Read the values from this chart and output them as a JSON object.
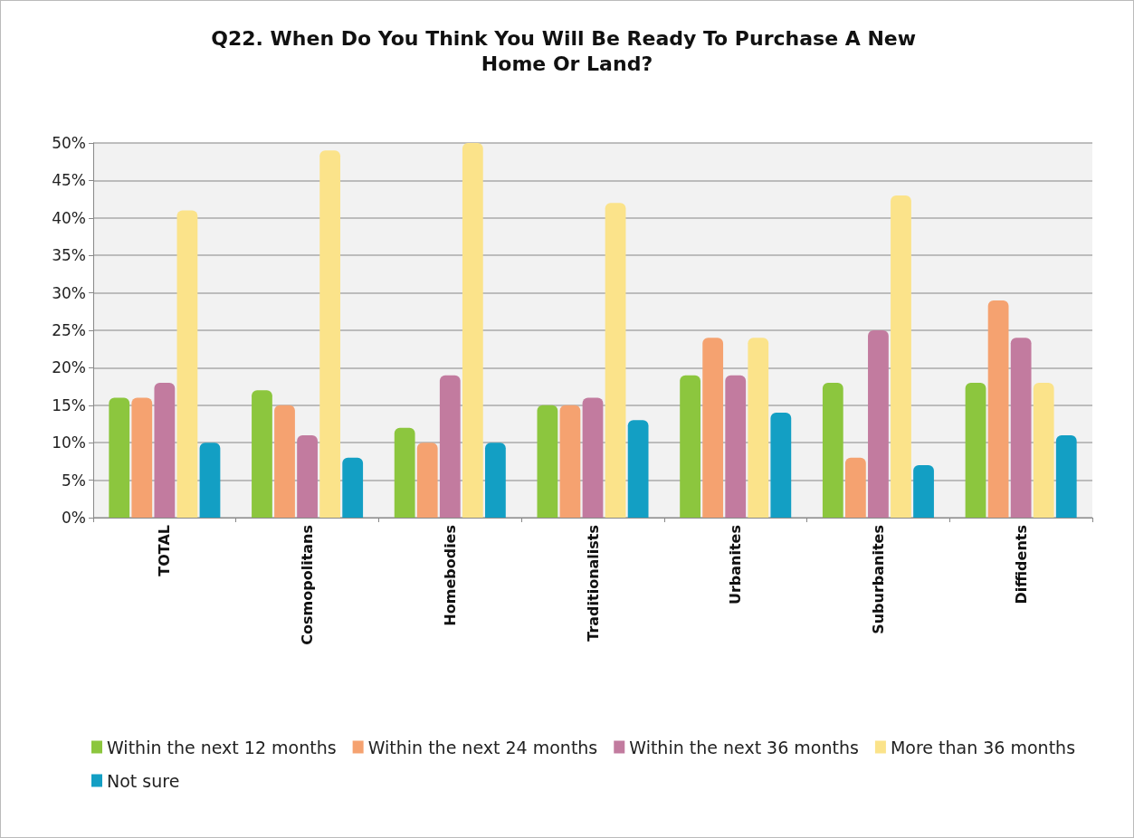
{
  "chart_data": {
    "type": "bar",
    "title": "Q22. When Do You Think You Will Be Ready To Purchase A New Home Or Land?",
    "categories": [
      "TOTAL",
      "Cosmopolitans",
      "Homebodies",
      "Traditionalists",
      "Urbanites",
      "Suburbanites",
      "Diffidents"
    ],
    "series": [
      {
        "name": "Within the next 12 months",
        "color": "#8cc63e",
        "values": [
          16,
          17,
          12,
          15,
          19,
          18,
          18
        ]
      },
      {
        "name": "Within the next 24 months",
        "color": "#f5a270",
        "values": [
          16,
          15,
          10,
          15,
          24,
          8,
          29
        ]
      },
      {
        "name": "Within the next 36 months",
        "color": "#c27b9f",
        "values": [
          18,
          11,
          19,
          16,
          19,
          25,
          24
        ]
      },
      {
        "name": "More than 36 months",
        "color": "#fbe38a",
        "values": [
          41,
          49,
          50,
          42,
          24,
          43,
          18
        ]
      },
      {
        "name": "Not sure",
        "color": "#139fc4",
        "values": [
          10,
          8,
          10,
          13,
          14,
          7,
          11
        ]
      }
    ],
    "ylim": [
      0,
      50
    ],
    "yticks": [
      {
        "value": 0,
        "label": "0%"
      },
      {
        "value": 5,
        "label": "5%"
      },
      {
        "value": 10,
        "label": "10%"
      },
      {
        "value": 15,
        "label": "15%"
      },
      {
        "value": 20,
        "label": "20%"
      },
      {
        "value": 25,
        "label": "25%"
      },
      {
        "value": 30,
        "label": "30%"
      },
      {
        "value": 35,
        "label": "35%"
      },
      {
        "value": 40,
        "label": "40%"
      },
      {
        "value": 45,
        "label": "45%"
      },
      {
        "value": 50,
        "label": "50%"
      }
    ],
    "grid": "y",
    "legend": "bottom"
  }
}
